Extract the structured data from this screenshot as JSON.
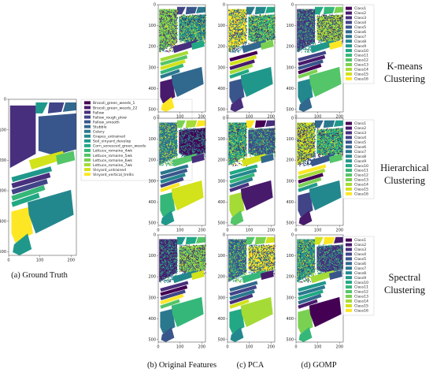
{
  "figure": {
    "ground_truth_legend": [
      "Brocoli_green_weeds_1",
      "Brocoli_green_weeds_22",
      "Fallow",
      "Fallow_rough_plow",
      "Fallow_smooth",
      "Stubble",
      "Celery",
      "Grapes_untrained",
      "Soil_vinyard_develop",
      "Corn_senesced_green_weeds",
      "Lettuce_romaine_4wk",
      "Lettuce_romaine_5wk",
      "Lettuce_romaine_6wk",
      "Lettuce_romaine_7wk",
      "Vinyard_untrained",
      "Vinyard_vertical_trellis"
    ],
    "cluster_legend": [
      "Class1",
      "Class2",
      "Class3",
      "Class4",
      "Class5",
      "Class6",
      "Class7",
      "Class8",
      "Class9",
      "Class10",
      "Class11",
      "Class12",
      "Class13",
      "Class14",
      "Class15",
      "Class16"
    ],
    "captions": {
      "ground_truth": "(a) Ground Truth",
      "original": "(b) Original Features",
      "pca": "(c) PCA",
      "gomp": "(d) GOMP"
    },
    "row_labels": [
      [
        "K-means",
        "Clustering"
      ],
      [
        "Hierarchical",
        "Clustering"
      ],
      [
        "Spectral",
        "Clustering"
      ]
    ],
    "y_ticks_gt": [
      "0",
      "100",
      "200",
      "300",
      "400",
      "500"
    ],
    "x_ticks_gt": [
      "0",
      "100",
      "200"
    ],
    "y_ticks_small": [
      "0",
      "100",
      "200",
      "300",
      "400",
      "500"
    ],
    "x_ticks_small": [
      "0",
      "100",
      "200"
    ],
    "colors": {
      "viridis": [
        "#440154",
        "#481a6c",
        "#472f7d",
        "#414487",
        "#39568c",
        "#31688e",
        "#2a788e",
        "#23888e",
        "#1f988b",
        "#22a884",
        "#35b779",
        "#54c568",
        "#7ad151",
        "#a5db36",
        "#d2e21b",
        "#fde725"
      ]
    }
  }
}
